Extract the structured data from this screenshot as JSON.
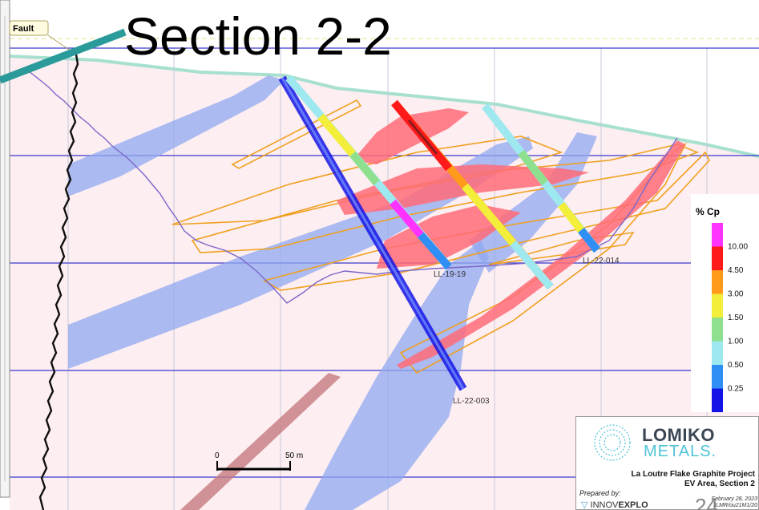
{
  "title": "Section 2-2",
  "fault_label": "Fault",
  "scale_bar": {
    "start_label": "0",
    "end_label": "50 m"
  },
  "drill_holes": [
    {
      "id": "LL-19-19"
    },
    {
      "id": "LL-22-014"
    },
    {
      "id": "LL-22-003"
    }
  ],
  "legend": {
    "title": "% Cp",
    "entries": [
      {
        "label": "10.00",
        "color": "#ff33ff"
      },
      {
        "label": "4.50",
        "color": "#ff1a1a"
      },
      {
        "label": "3.00",
        "color": "#ff9a1a"
      },
      {
        "label": "1.50",
        "color": "#f2ee3a"
      },
      {
        "label": "1.00",
        "color": "#8ee08e"
      },
      {
        "label": "0.50",
        "color": "#9ee8f0"
      },
      {
        "label": "0.25",
        "color": "#2f8ff5"
      },
      {
        "label": "",
        "color": "#1414e6"
      }
    ]
  },
  "logo_card": {
    "company_line1": "LOMIKO",
    "company_line2": "METALS.",
    "project_line1": "La Loutre Flake Graphite Project",
    "project_line2": "EV Area, Section 2",
    "prepared_by": "Prepared by:",
    "firm_prefix": "INNOV",
    "firm_suffix": "EXPLO",
    "page_number": "24",
    "date": "February 28, 2023",
    "doc_ref": "ILMR/ou21M1/20"
  },
  "colors": {
    "background": "#fdf0f2",
    "teal_pointer": "#2a9a9a",
    "fault_line": "#111111",
    "level_line": "#3a3acc",
    "graphite_blue": "#8fa8f0",
    "graphite_red": "#ff6b78",
    "outline_orange": "#f0a020"
  }
}
